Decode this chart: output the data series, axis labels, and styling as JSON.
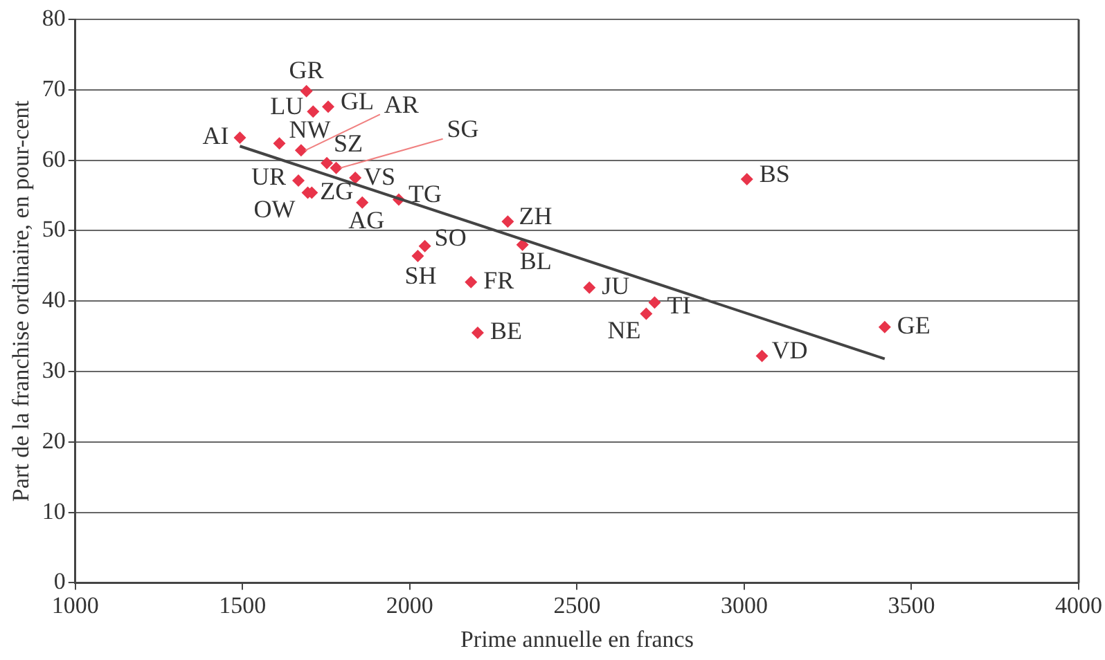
{
  "chart_data": {
    "type": "scatter",
    "xlabel": "Prime annuelle en francs",
    "ylabel": "Part de la franchise ordinaire, en pour-cent",
    "xlim": [
      1000,
      4000
    ],
    "xticks": [
      1000,
      1500,
      2000,
      2500,
      3000,
      3500,
      4000
    ],
    "ylim": [
      0,
      80
    ],
    "yticks": [
      0,
      10,
      20,
      30,
      40,
      50,
      60,
      70,
      80
    ],
    "grid": "y",
    "legend": false,
    "marker": "diamond",
    "series": [
      {
        "color": "#e8344a",
        "x": [
          1492,
          1610,
          1691,
          1711,
          1756,
          1675,
          1752,
          1780,
          1667,
          1695,
          1707,
          1837,
          1858,
          1967,
          2293,
          2045,
          2024,
          2337,
          2183,
          2203,
          2537,
          2732,
          2707,
          3008,
          3420,
          3053
        ],
        "values": [
          63.2,
          62.4,
          69.8,
          66.9,
          67.6,
          61.4,
          59.6,
          58.9,
          57.1,
          55.4,
          55.4,
          57.5,
          54.0,
          54.4,
          51.3,
          47.8,
          46.4,
          48.0,
          42.7,
          35.5,
          41.9,
          39.8,
          38.2,
          57.3,
          36.3,
          32.2
        ]
      },
      {
        "type": "line",
        "marker": "none",
        "color": "#444444",
        "x": [
          1492,
          3420
        ],
        "values": [
          62.0,
          31.8
        ]
      }
    ],
    "annotations": [
      {
        "text": "AI",
        "x": 1492,
        "y": 63.2
      },
      {
        "text": "NW",
        "x": 1610,
        "y": 62.4
      },
      {
        "text": "GR",
        "x": 1691,
        "y": 69.8
      },
      {
        "text": "LU",
        "x": 1711,
        "y": 66.9
      },
      {
        "text": "GL",
        "x": 1756,
        "y": 67.6
      },
      {
        "text": "AR",
        "x": 1675,
        "y": 61.4
      },
      {
        "text": "SZ",
        "x": 1752,
        "y": 59.6
      },
      {
        "text": "SG",
        "x": 1780,
        "y": 58.9
      },
      {
        "text": "UR",
        "x": 1667,
        "y": 57.1
      },
      {
        "text": "OW",
        "x": 1695,
        "y": 55.4
      },
      {
        "text": "ZG",
        "x": 1707,
        "y": 55.4
      },
      {
        "text": "VS",
        "x": 1837,
        "y": 57.5
      },
      {
        "text": "AG",
        "x": 1858,
        "y": 54.0
      },
      {
        "text": "TG",
        "x": 1967,
        "y": 54.4
      },
      {
        "text": "ZH",
        "x": 2293,
        "y": 51.3
      },
      {
        "text": "SO",
        "x": 2045,
        "y": 47.8
      },
      {
        "text": "SH",
        "x": 2024,
        "y": 46.4
      },
      {
        "text": "BL",
        "x": 2337,
        "y": 48.0
      },
      {
        "text": "FR",
        "x": 2183,
        "y": 42.7
      },
      {
        "text": "BE",
        "x": 2203,
        "y": 35.5
      },
      {
        "text": "JU",
        "x": 2537,
        "y": 41.9
      },
      {
        "text": "TI",
        "x": 2732,
        "y": 39.8
      },
      {
        "text": "NE",
        "x": 2707,
        "y": 38.2
      },
      {
        "text": "BS",
        "x": 3008,
        "y": 57.3
      },
      {
        "text": "GE",
        "x": 3420,
        "y": 36.3
      },
      {
        "text": "VD",
        "x": 3053,
        "y": 32.2
      }
    ]
  }
}
